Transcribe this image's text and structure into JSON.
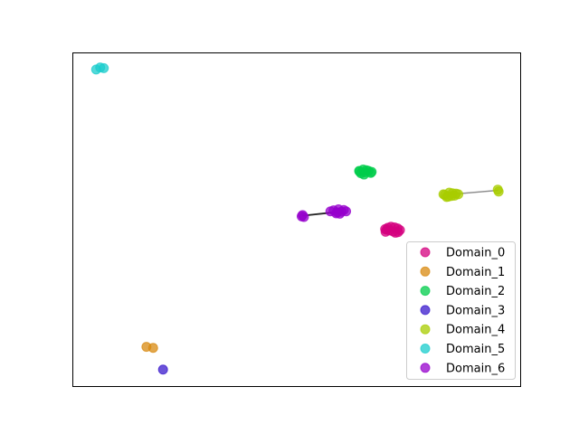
{
  "chart_data": {
    "type": "scatter",
    "title": "",
    "xlabel": "",
    "ylabel": "",
    "xlim": [
      0,
      100
    ],
    "ylim": [
      0,
      100
    ],
    "axis_ticks": false,
    "grid": false,
    "legend_position": "lower-right",
    "point_alpha": 0.75,
    "series": [
      {
        "name": "Domain_0",
        "color": "#d4007f",
        "points": [
          [
            70.0,
            47.0
          ],
          [
            71.5,
            46.5
          ],
          [
            72.5,
            47.4
          ],
          [
            71.0,
            47.9
          ],
          [
            69.8,
            46.4
          ],
          [
            72.0,
            46.1
          ],
          [
            70.7,
            46.8
          ],
          [
            73.0,
            46.9
          ],
          [
            71.8,
            47.7
          ],
          [
            70.3,
            47.6
          ],
          [
            72.6,
            46.3
          ],
          [
            69.7,
            47.2
          ]
        ]
      },
      {
        "name": "Domain_1",
        "color": "#d88a10",
        "points": [
          [
            16.5,
            12.0
          ],
          [
            18.0,
            11.7
          ]
        ]
      },
      {
        "name": "Domain_2",
        "color": "#00cc4b",
        "points": [
          [
            64.0,
            64.4
          ],
          [
            65.5,
            64.8
          ],
          [
            66.5,
            64.0
          ],
          [
            65.0,
            63.5
          ],
          [
            64.3,
            63.9
          ],
          [
            66.0,
            64.6
          ],
          [
            65.2,
            64.2
          ],
          [
            64.8,
            65.0
          ],
          [
            66.7,
            64.3
          ],
          [
            63.9,
            64.6
          ]
        ]
      },
      {
        "name": "Domain_3",
        "color": "#3a1acc",
        "points": [
          [
            20.2,
            5.2
          ]
        ]
      },
      {
        "name": "Domain_4",
        "color": "#a8cc00",
        "points": [
          [
            83.0,
            57.4
          ],
          [
            84.5,
            57.1
          ],
          [
            85.5,
            57.8
          ],
          [
            84.0,
            58.1
          ],
          [
            83.4,
            56.8
          ],
          [
            85.2,
            57.2
          ],
          [
            82.7,
            57.6
          ],
          [
            84.7,
            57.9
          ],
          [
            83.8,
            56.9
          ],
          [
            86.0,
            57.6
          ],
          [
            94.8,
            59.0
          ],
          [
            95.0,
            58.4
          ]
        ]
      },
      {
        "name": "Domain_5",
        "color": "#1acccc",
        "points": [
          [
            5.3,
            94.9
          ],
          [
            6.2,
            95.5
          ],
          [
            7.0,
            95.3
          ]
        ]
      },
      {
        "name": "Domain_6",
        "color": "#9600cc",
        "points": [
          [
            57.5,
            52.5
          ],
          [
            59.0,
            52.2
          ],
          [
            60.5,
            52.9
          ],
          [
            59.6,
            51.8
          ],
          [
            58.2,
            52.8
          ],
          [
            60.0,
            52.4
          ],
          [
            58.8,
            51.9
          ],
          [
            61.0,
            52.5
          ],
          [
            59.3,
            53.1
          ],
          [
            51.3,
            51.4
          ],
          [
            51.6,
            50.8
          ],
          [
            51.1,
            51.0
          ]
        ]
      }
    ],
    "links": [
      {
        "color": "#222222",
        "from": [
          59.0,
          52.3
        ],
        "to": [
          51.3,
          51.2
        ],
        "count": 5
      },
      {
        "color": "#888888",
        "from": [
          84.5,
          57.6
        ],
        "to": [
          94.9,
          58.8
        ],
        "count": 3
      }
    ]
  }
}
